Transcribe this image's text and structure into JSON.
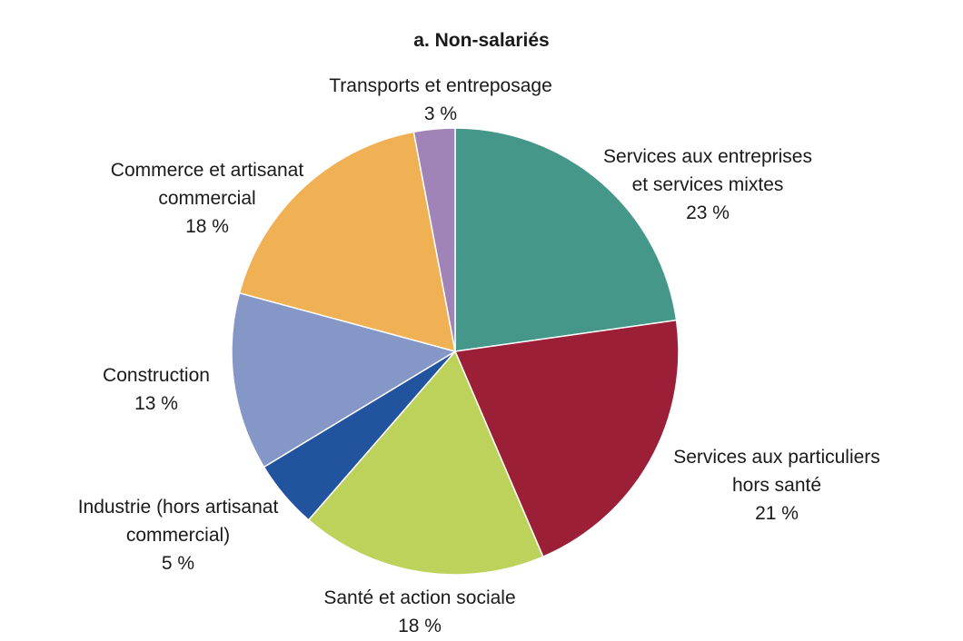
{
  "chart_data": {
    "type": "pie",
    "title": "a. Non-salariés",
    "slices": [
      {
        "label": [
          "Services aux entreprises",
          "et services mixtes"
        ],
        "value_label": "23 %",
        "value": 23,
        "color": "#45978a"
      },
      {
        "label": [
          "Services aux particuliers",
          "hors santé"
        ],
        "value_label": "21 %",
        "value": 21,
        "color": "#9b1f37"
      },
      {
        "label": [
          "Santé et action sociale"
        ],
        "value_label": "18 %",
        "value": 18,
        "color": "#bdd25a"
      },
      {
        "label": [
          "Industrie (hors artisanat",
          "commercial)"
        ],
        "value_label": "5 %",
        "value": 5,
        "color": "#22539e"
      },
      {
        "label": [
          "Construction"
        ],
        "value_label": "13 %",
        "value": 13,
        "color": "#8597c7"
      },
      {
        "label": [
          "Commerce et artisanat",
          "commercial"
        ],
        "value_label": "18 %",
        "value": 18,
        "color": "#f0b054"
      },
      {
        "label": [
          "Transports et entreposage"
        ],
        "value_label": "3 %",
        "value": 3,
        "color": "#a084b8"
      }
    ]
  }
}
